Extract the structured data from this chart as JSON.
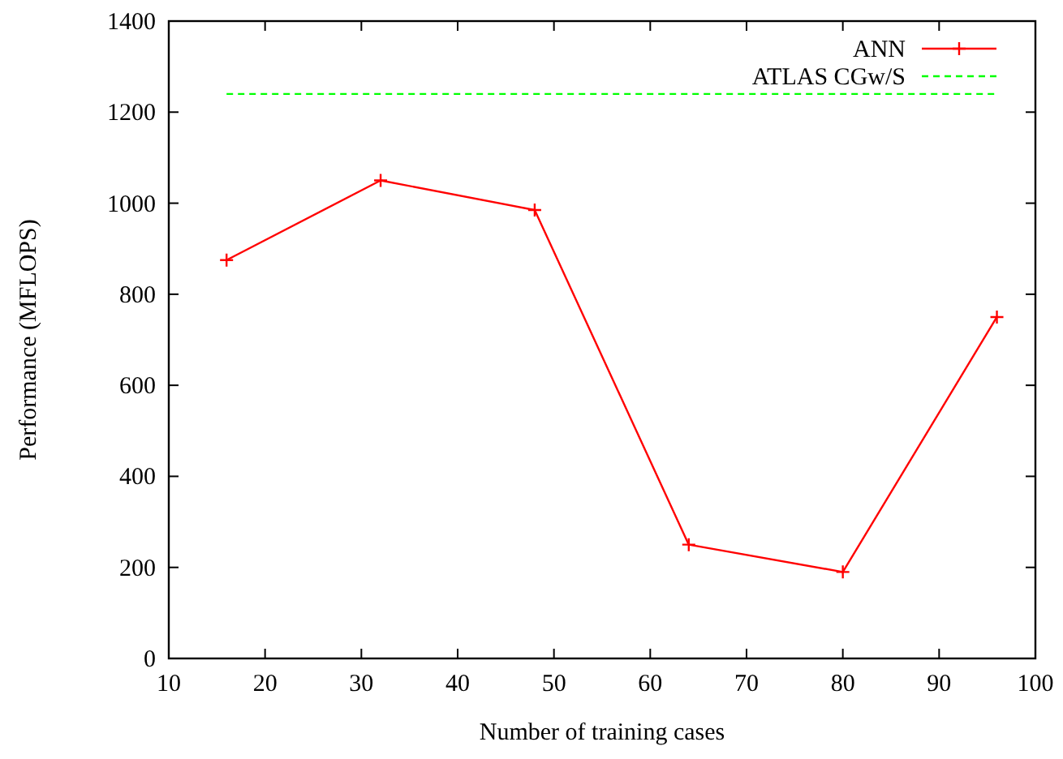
{
  "chart_data": {
    "type": "line",
    "xlabel": "Number of training cases",
    "ylabel": "Performance (MFLOPS)",
    "xlim": [
      10,
      100
    ],
    "xticks": [
      10,
      20,
      30,
      40,
      50,
      60,
      70,
      80,
      90,
      100
    ],
    "ylim": [
      0,
      1400
    ],
    "yticks": [
      0,
      200,
      400,
      600,
      800,
      1000,
      1200,
      1400
    ],
    "grid": false,
    "legend": "top right",
    "series": [
      {
        "name": "ANN",
        "color": "#ff0000",
        "x": [
          16,
          32,
          48,
          64,
          80,
          96
        ],
        "values": [
          875,
          1050,
          985,
          250,
          190,
          750
        ],
        "marker": "cross",
        "line_style": "solid"
      },
      {
        "name": "ATLAS CGw/S",
        "color": "#00ff00",
        "x": [
          16,
          96
        ],
        "values": [
          1240,
          1240
        ],
        "marker": "none",
        "line_style": "dashed"
      }
    ]
  }
}
